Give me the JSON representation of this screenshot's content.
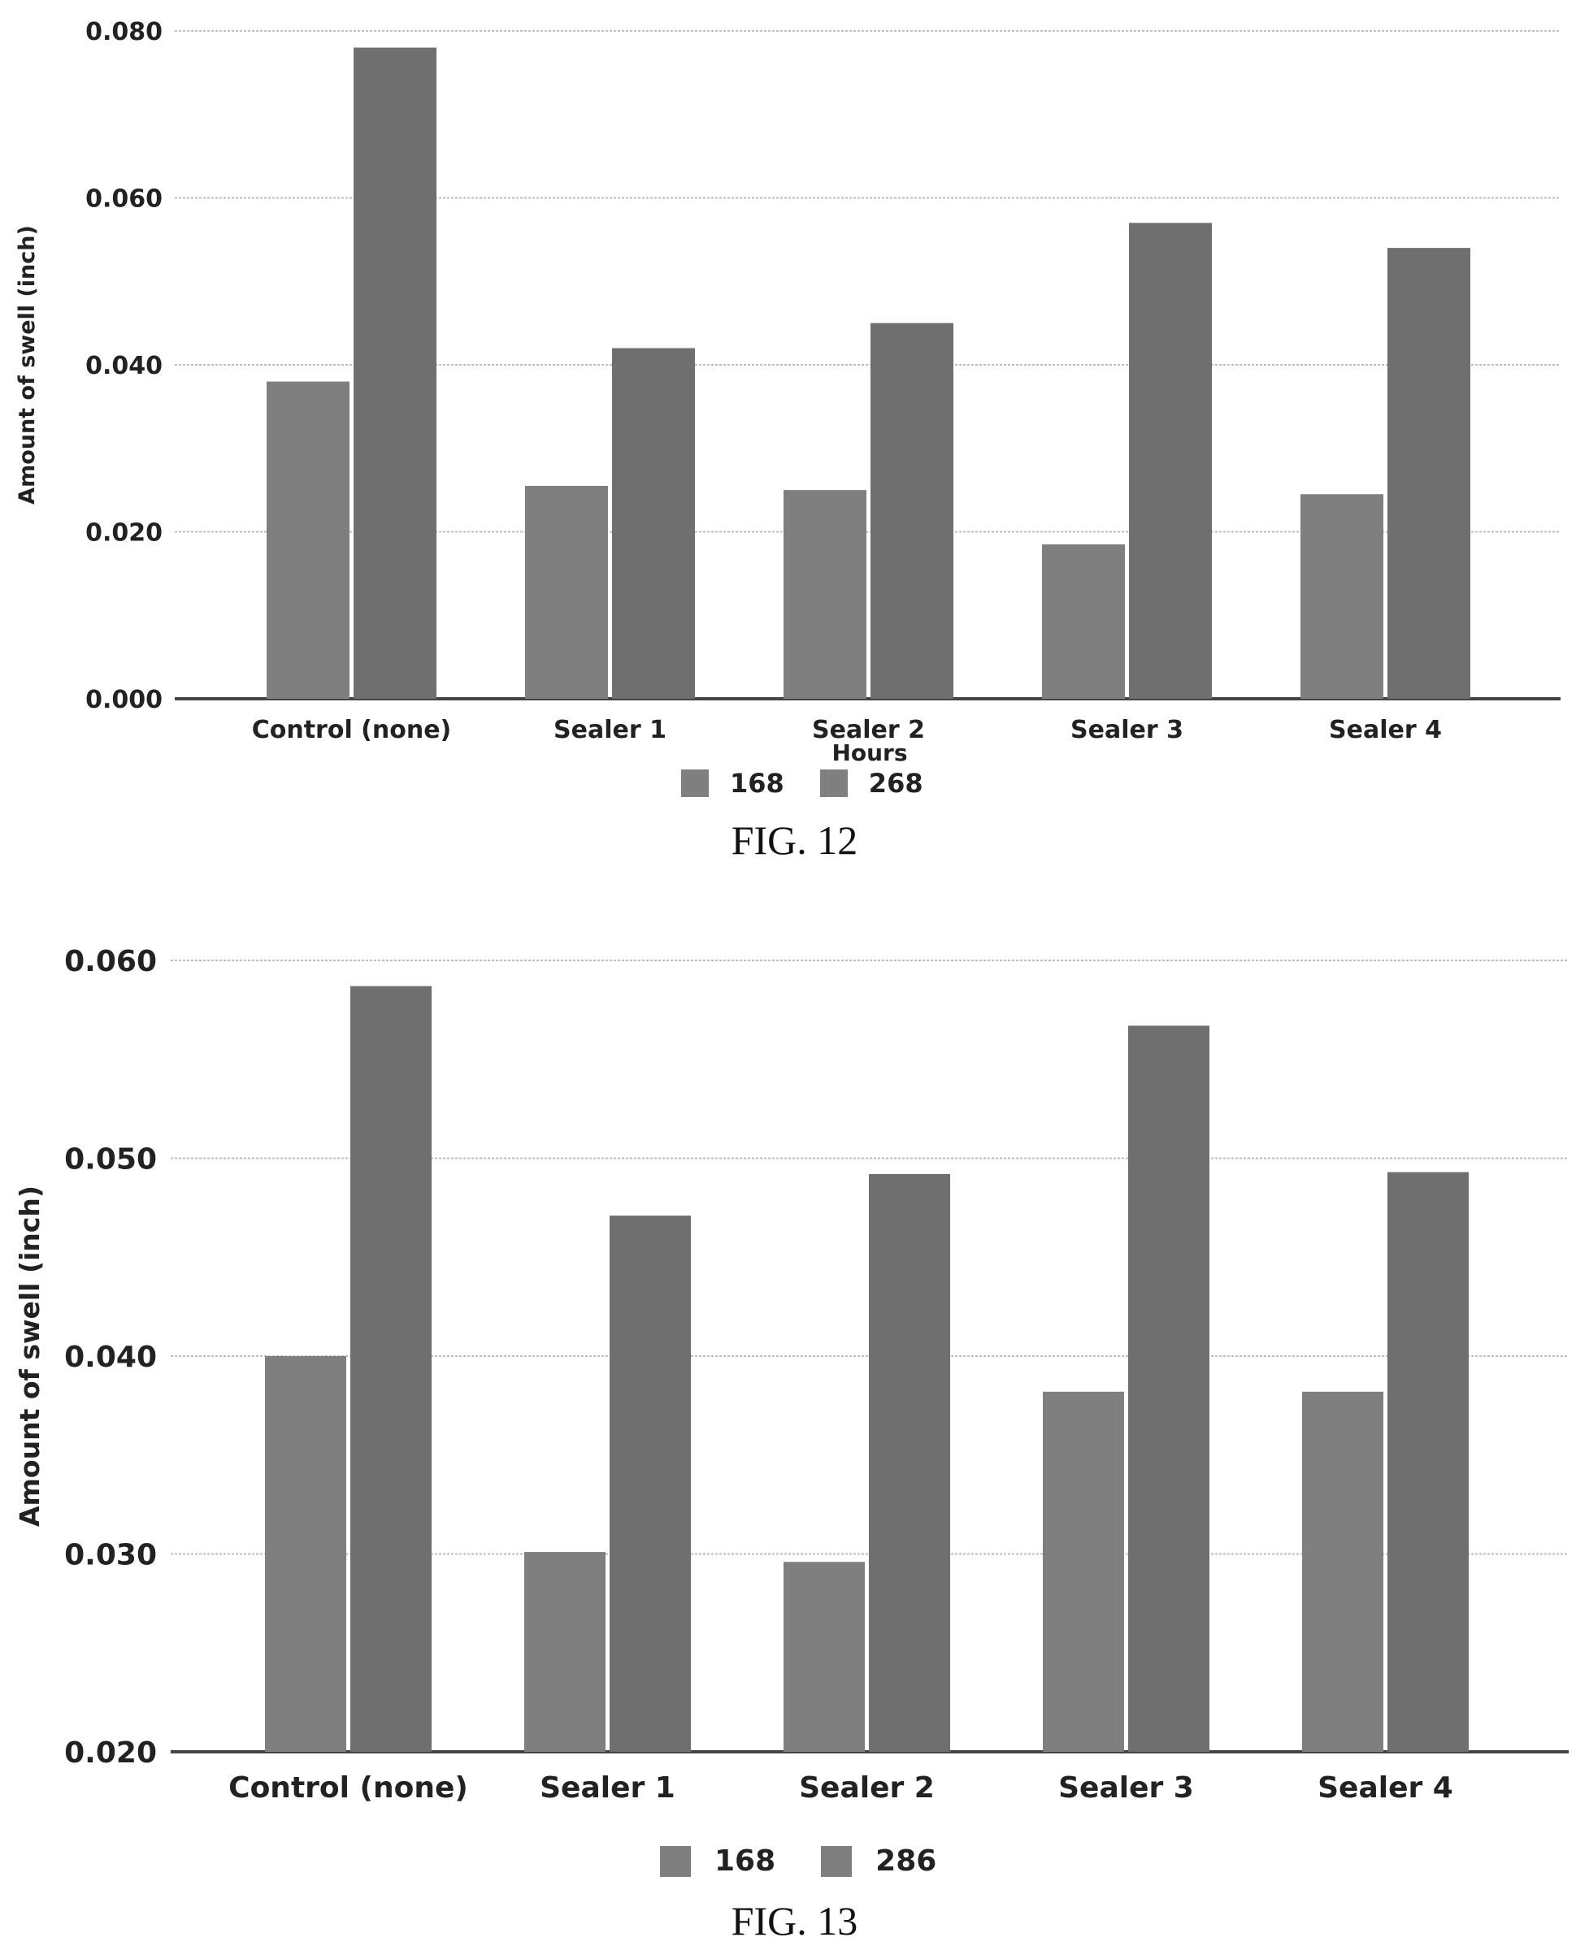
{
  "chart_data": [
    {
      "type": "bar",
      "figure_label": "FIG. 12",
      "categories": [
        "Control (none)",
        "Sealer 1",
        "Sealer 2",
        "Sealer 3",
        "Sealer 4"
      ],
      "series": [
        {
          "name": "168",
          "values": [
            0.038,
            0.0255,
            0.025,
            0.0185,
            0.0245
          ]
        },
        {
          "name": "268",
          "values": [
            0.078,
            0.042,
            0.045,
            0.057,
            0.054
          ]
        }
      ],
      "ylabel": "Amount of swell (inch)",
      "legend_title": "Hours",
      "ylim": [
        0,
        0.08
      ],
      "yticks": [
        "0.000",
        "0.020",
        "0.040",
        "0.060",
        "0.080"
      ],
      "grid": true,
      "legend_position": "bottom-center",
      "colors": {
        "series_168": "#7f7f7f",
        "series_268": "#6f6f6f",
        "axis": "#444444",
        "grid": "#bdbdbd"
      }
    },
    {
      "type": "bar",
      "figure_label": "FIG. 13",
      "categories": [
        "Control (none)",
        "Sealer 1",
        "Sealer 2",
        "Sealer 3",
        "Sealer 4"
      ],
      "series": [
        {
          "name": "168",
          "values": [
            0.04,
            0.0301,
            0.0296,
            0.0382,
            0.0382
          ]
        },
        {
          "name": "286",
          "values": [
            0.0587,
            0.0471,
            0.0492,
            0.0567,
            0.0493
          ]
        }
      ],
      "ylabel": "Amount of swell (inch)",
      "ylim": [
        0.02,
        0.06
      ],
      "yticks": [
        "0.020",
        "0.030",
        "0.040",
        "0.050",
        "0.060"
      ],
      "grid": true,
      "legend_position": "bottom-center",
      "colors": {
        "series_168": "#7f7f7f",
        "series_286": "#6f6f6f",
        "axis": "#444444",
        "grid": "#bdbdbd"
      }
    }
  ]
}
